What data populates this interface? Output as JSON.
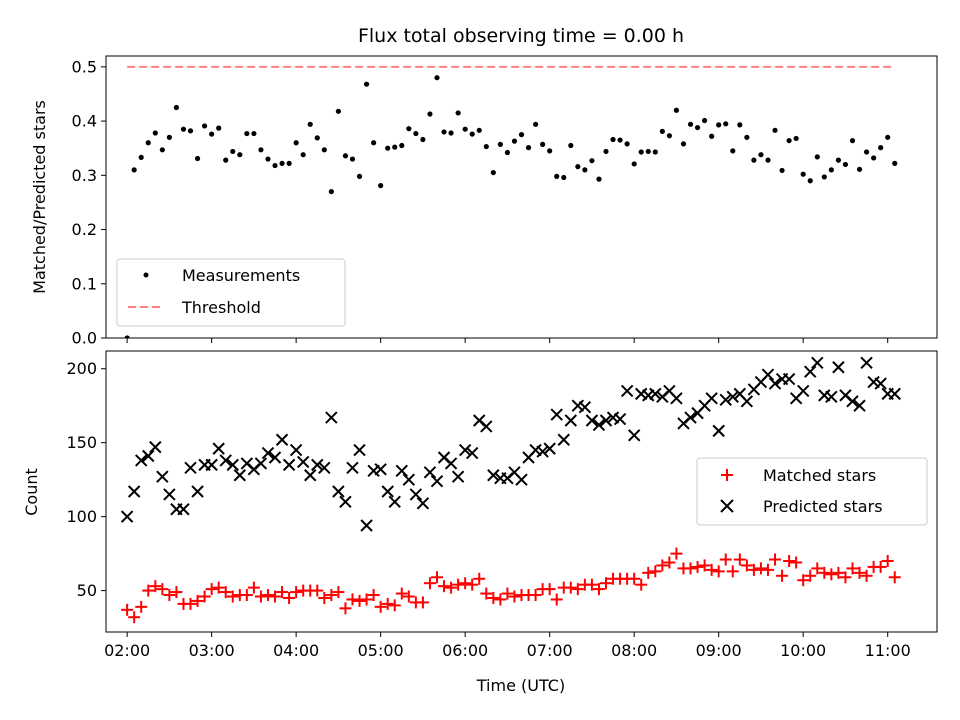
{
  "chart_data": [
    {
      "type": "scatter",
      "title": "Flux total observing time = 0.00 h",
      "xlabel": "",
      "ylabel": "Matched/Predicted stars",
      "xlim": [
        "01:45",
        "11:35"
      ],
      "ylim": [
        0,
        0.52
      ],
      "y_ticks": [
        "0.0",
        "0.1",
        "0.2",
        "0.3",
        "0.4",
        "0.5"
      ],
      "x_ticks": [],
      "grid": false,
      "legend_position": "lower-left",
      "legend": [
        "Measurements",
        "Threshold"
      ],
      "series": [
        {
          "name": "Measurements",
          "marker": "dot",
          "color": "#000000",
          "x": [
            "02:00",
            "02:05",
            "02:10",
            "02:15",
            "02:20",
            "02:25",
            "02:30",
            "02:35",
            "02:40",
            "02:45",
            "02:50",
            "02:55",
            "03:00",
            "03:05",
            "03:10",
            "03:15",
            "03:20",
            "03:25",
            "03:30",
            "03:35",
            "03:40",
            "03:45",
            "03:50",
            "03:55",
            "04:00",
            "04:05",
            "04:10",
            "04:15",
            "04:20",
            "04:25",
            "04:30",
            "04:35",
            "04:40",
            "04:45",
            "04:50",
            "04:55",
            "05:00",
            "05:05",
            "05:10",
            "05:15",
            "05:20",
            "05:25",
            "05:30",
            "05:35",
            "05:40",
            "05:45",
            "05:50",
            "05:55",
            "06:00",
            "06:05",
            "06:10",
            "06:15",
            "06:20",
            "06:25",
            "06:30",
            "06:35",
            "06:40",
            "06:45",
            "06:50",
            "06:55",
            "07:00",
            "07:05",
            "07:10",
            "07:15",
            "07:20",
            "07:25",
            "07:30",
            "07:35",
            "07:40",
            "07:45",
            "07:50",
            "07:55",
            "08:00",
            "08:05",
            "08:10",
            "08:15",
            "08:20",
            "08:25",
            "08:30",
            "08:35",
            "08:40",
            "08:45",
            "08:50",
            "08:55",
            "09:00",
            "09:05",
            "09:10",
            "09:15",
            "09:20",
            "09:25",
            "09:30",
            "09:35",
            "09:40",
            "09:45",
            "09:50",
            "09:55",
            "10:00",
            "10:05",
            "10:10",
            "10:15",
            "10:20",
            "10:25",
            "10:30",
            "10:35",
            "10:40",
            "10:45",
            "10:50",
            "10:55",
            "11:00",
            "11:05"
          ],
          "y": [
            0.0,
            0.31,
            0.333,
            0.36,
            0.378,
            0.347,
            0.37,
            0.425,
            0.385,
            0.382,
            0.331,
            0.391,
            0.376,
            0.387,
            0.328,
            0.344,
            0.338,
            0.377,
            0.377,
            0.347,
            0.33,
            0.318,
            0.322,
            0.322,
            0.36,
            0.338,
            0.394,
            0.369,
            0.347,
            0.27,
            0.418,
            0.336,
            0.33,
            0.298,
            0.468,
            0.36,
            0.281,
            0.35,
            0.352,
            0.355,
            0.386,
            0.377,
            0.366,
            0.413,
            0.48,
            0.38,
            0.378,
            0.415,
            0.385,
            0.376,
            0.383,
            0.353,
            0.305,
            0.357,
            0.342,
            0.363,
            0.375,
            0.351,
            0.394,
            0.357,
            0.345,
            0.298,
            0.296,
            0.355,
            0.316,
            0.31,
            0.327,
            0.293,
            0.344,
            0.366,
            0.365,
            0.358,
            0.321,
            0.343,
            0.344,
            0.343,
            0.381,
            0.373,
            0.42,
            0.358,
            0.394,
            0.388,
            0.401,
            0.372,
            0.393,
            0.395,
            0.345,
            0.393,
            0.37,
            0.328,
            0.338,
            0.328,
            0.383,
            0.309,
            0.364,
            0.368,
            0.302,
            0.29,
            0.334,
            0.297,
            0.31,
            0.328,
            0.32,
            0.364,
            0.311,
            0.343,
            0.332,
            0.351,
            0.37,
            0.322
          ]
        },
        {
          "name": "Threshold",
          "style": "dashed",
          "color": "#ff7f7f",
          "x": [
            "02:00",
            "11:05"
          ],
          "y": [
            0.5,
            0.5
          ]
        }
      ]
    },
    {
      "type": "scatter",
      "title": "",
      "xlabel": "Time (UTC)",
      "ylabel": "Count",
      "xlim": [
        "01:45",
        "11:35"
      ],
      "ylim": [
        22,
        212
      ],
      "y_ticks": [
        "50",
        "100",
        "150",
        "200"
      ],
      "x_ticks": [
        "02:00",
        "03:00",
        "04:00",
        "05:00",
        "06:00",
        "07:00",
        "08:00",
        "09:00",
        "10:00",
        "11:00"
      ],
      "grid": false,
      "legend_position": "center-right",
      "legend": [
        "Matched stars",
        "Predicted stars"
      ],
      "series": [
        {
          "name": "Matched stars",
          "marker": "plus",
          "color": "#ff0000",
          "x": [
            "02:00",
            "02:05",
            "02:10",
            "02:15",
            "02:20",
            "02:25",
            "02:30",
            "02:35",
            "02:40",
            "02:45",
            "02:50",
            "02:55",
            "03:00",
            "03:05",
            "03:10",
            "03:15",
            "03:20",
            "03:25",
            "03:30",
            "03:35",
            "03:40",
            "03:45",
            "03:50",
            "03:55",
            "04:00",
            "04:05",
            "04:10",
            "04:15",
            "04:20",
            "04:25",
            "04:30",
            "04:35",
            "04:40",
            "04:45",
            "04:50",
            "04:55",
            "05:00",
            "05:05",
            "05:10",
            "05:15",
            "05:20",
            "05:25",
            "05:30",
            "05:35",
            "05:40",
            "05:45",
            "05:50",
            "05:55",
            "06:00",
            "06:05",
            "06:10",
            "06:15",
            "06:20",
            "06:25",
            "06:30",
            "06:35",
            "06:40",
            "06:45",
            "06:50",
            "06:55",
            "07:00",
            "07:05",
            "07:10",
            "07:15",
            "07:20",
            "07:25",
            "07:30",
            "07:35",
            "07:40",
            "07:45",
            "07:50",
            "07:55",
            "08:00",
            "08:05",
            "08:10",
            "08:15",
            "08:20",
            "08:25",
            "08:30",
            "08:35",
            "08:40",
            "08:45",
            "08:50",
            "08:55",
            "09:00",
            "09:05",
            "09:10",
            "09:15",
            "09:20",
            "09:25",
            "09:30",
            "09:35",
            "09:40",
            "09:45",
            "09:50",
            "09:55",
            "10:00",
            "10:05",
            "10:10",
            "10:15",
            "10:20",
            "10:25",
            "10:30",
            "10:35",
            "10:40",
            "10:45",
            "10:50",
            "10:55",
            "11:00",
            "11:05"
          ],
          "y": [
            37,
            32,
            39,
            50,
            53,
            51,
            47,
            49,
            41,
            41,
            43,
            46,
            51,
            52,
            49,
            46,
            47,
            47,
            52,
            46,
            47,
            46,
            49,
            45,
            49,
            50,
            50,
            50,
            45,
            47,
            49,
            38,
            44,
            43,
            44,
            47,
            39,
            41,
            40,
            48,
            46,
            42,
            42,
            55,
            59,
            53,
            52,
            54,
            55,
            54,
            58,
            48,
            45,
            44,
            48,
            46,
            47,
            47,
            47,
            51,
            51,
            44,
            52,
            52,
            51,
            54,
            54,
            51,
            55,
            58,
            58,
            58,
            58,
            54,
            62,
            63,
            67,
            69,
            75,
            65,
            65,
            66,
            67,
            64,
            63,
            71,
            63,
            71,
            67,
            64,
            65,
            64,
            71,
            60,
            70,
            69,
            57,
            60,
            65,
            62,
            61,
            62,
            59,
            65,
            62,
            60,
            66,
            66,
            70,
            59
          ]
        },
        {
          "name": "Predicted stars",
          "marker": "cross",
          "color": "#000000",
          "x": [
            "02:00",
            "02:05",
            "02:10",
            "02:15",
            "02:20",
            "02:25",
            "02:30",
            "02:35",
            "02:40",
            "02:45",
            "02:50",
            "02:55",
            "03:00",
            "03:05",
            "03:10",
            "03:15",
            "03:20",
            "03:25",
            "03:30",
            "03:35",
            "03:40",
            "03:45",
            "03:50",
            "03:55",
            "04:00",
            "04:05",
            "04:10",
            "04:15",
            "04:20",
            "04:25",
            "04:30",
            "04:35",
            "04:40",
            "04:45",
            "04:50",
            "04:55",
            "05:00",
            "05:05",
            "05:10",
            "05:15",
            "05:20",
            "05:25",
            "05:30",
            "05:35",
            "05:40",
            "05:45",
            "05:50",
            "05:55",
            "06:00",
            "06:05",
            "06:10",
            "06:15",
            "06:20",
            "06:25",
            "06:30",
            "06:35",
            "06:40",
            "06:45",
            "06:50",
            "06:55",
            "07:00",
            "07:05",
            "07:10",
            "07:15",
            "07:20",
            "07:25",
            "07:30",
            "07:35",
            "07:40",
            "07:45",
            "07:50",
            "07:55",
            "08:00",
            "08:05",
            "08:10",
            "08:15",
            "08:20",
            "08:25",
            "08:30",
            "08:35",
            "08:40",
            "08:45",
            "08:50",
            "08:55",
            "09:00",
            "09:05",
            "09:10",
            "09:15",
            "09:20",
            "09:25",
            "09:30",
            "09:35",
            "09:40",
            "09:45",
            "09:50",
            "09:55",
            "10:00",
            "10:05",
            "10:10",
            "10:15",
            "10:20",
            "10:25",
            "10:30",
            "10:35",
            "10:40",
            "10:45",
            "10:50",
            "10:55",
            "11:00",
            "11:05"
          ],
          "y": [
            100,
            117,
            138,
            141,
            147,
            127,
            115,
            105,
            105,
            133,
            117,
            135,
            135,
            146,
            138,
            135,
            128,
            136,
            132,
            136,
            143,
            140,
            152,
            135,
            145,
            137,
            128,
            135,
            133,
            167,
            117,
            110,
            133,
            145,
            94,
            131,
            132,
            117,
            110,
            131,
            125,
            115,
            109,
            130,
            124,
            140,
            136,
            127,
            145,
            143,
            165,
            161,
            128,
            126,
            126,
            130,
            125,
            140,
            145,
            144,
            146,
            169,
            152,
            165,
            175,
            174,
            165,
            162,
            165,
            167,
            166,
            185,
            155,
            183,
            182,
            183,
            181,
            185,
            180,
            163,
            167,
            170,
            175,
            180,
            158,
            179,
            181,
            183,
            178,
            186,
            191,
            196,
            190,
            193,
            193,
            180,
            185,
            198,
            204,
            182,
            181,
            201,
            182,
            178,
            175,
            204,
            191,
            190,
            183,
            183
          ]
        }
      ]
    }
  ]
}
